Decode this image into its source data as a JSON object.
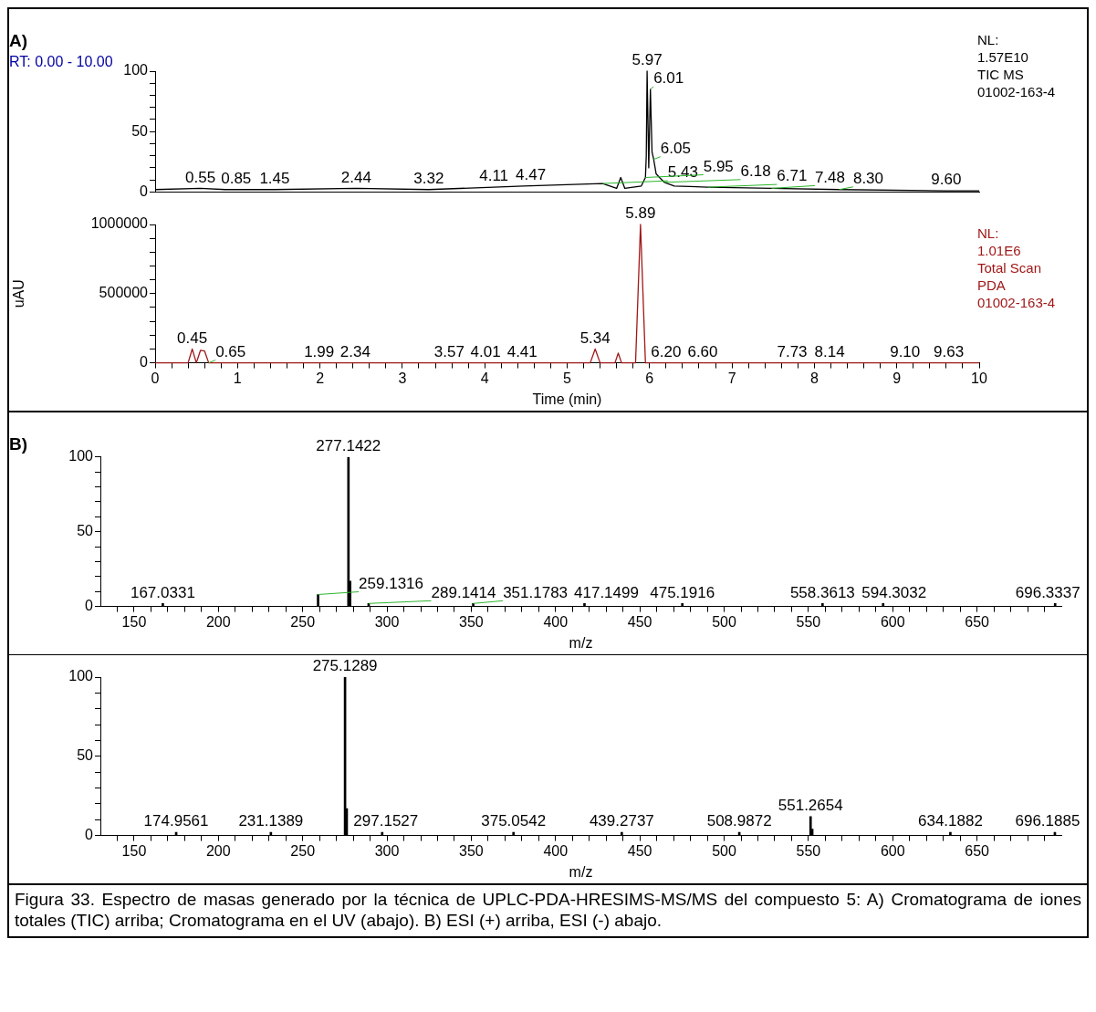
{
  "chart_data": [
    {
      "type": "line",
      "title": "A)",
      "subtitle": "RT: 0.00 - 10.00",
      "xlim": [
        0,
        10
      ],
      "ylim": [
        0,
        100
      ],
      "yticks": [
        0,
        {
          "value": 10,
          "label": null
        },
        {
          "value": 20,
          "label": null
        },
        {
          "value": 30,
          "label": null
        },
        {
          "value": 40,
          "label": null
        },
        50,
        {
          "value": 60,
          "label": null
        },
        {
          "value": 70,
          "label": null
        },
        {
          "value": 80,
          "label": null
        },
        {
          "value": 90,
          "label": null
        },
        100
      ],
      "tick_labels": "y",
      "series": [
        {
          "color": "#000000",
          "x": [
            0,
            0.55,
            0.85,
            1.45,
            2.44,
            3.32,
            4.11,
            4.47,
            5.43,
            5.6,
            5.65,
            5.7,
            5.9,
            5.95,
            5.96,
            5.97,
            5.99,
            6.01,
            6.03,
            6.05,
            6.08,
            6.12,
            6.18,
            6.3,
            6.71,
            7.48,
            8.3,
            9.6,
            10
          ],
          "values": [
            2,
            3,
            2,
            2,
            3,
            2,
            4,
            5,
            7,
            3,
            12,
            3,
            5,
            12,
            30,
            100,
            20,
            85,
            33,
            27,
            15,
            12,
            8,
            5,
            4,
            3,
            2,
            1,
            1
          ]
        }
      ],
      "annotations": [
        "NL:",
        "1.57E10",
        "TIC  MS",
        "01002-163-4",
        {
          "text": "0.55",
          "x": 0.55,
          "y": 3
        },
        {
          "text": "0.85",
          "x": 0.85,
          "y": 2
        },
        {
          "text": "1.45",
          "x": 1.45,
          "y": 2
        },
        {
          "text": "2.44",
          "x": 2.44,
          "y": 3
        },
        {
          "text": "3.32",
          "x": 3.32,
          "y": 2
        },
        {
          "text": "4.11",
          "x": 4.11,
          "y": 4
        },
        {
          "text": "4.47",
          "x": 4.47,
          "y": 5
        },
        {
          "text": "5.43",
          "x": 5.43,
          "y": 7
        },
        {
          "text": "5.97",
          "x": 5.97,
          "y": 100
        },
        {
          "text": "6.01",
          "x": 6.01,
          "y": 85
        },
        {
          "text": "6.05",
          "x": 6.05,
          "y": 27
        },
        {
          "text": "5.95",
          "x": 5.95,
          "y": 12
        },
        {
          "text": "6.18",
          "x": 6.18,
          "y": 8
        },
        {
          "text": "6.71",
          "x": 6.71,
          "y": 4
        },
        {
          "text": "7.48",
          "x": 7.48,
          "y": 3
        },
        {
          "text": "8.30",
          "x": 8.3,
          "y": 2
        },
        {
          "text": "9.60",
          "x": 9.6,
          "y": 1
        }
      ]
    },
    {
      "type": "line",
      "xlabel": "Time (min)",
      "ylabel": "uAU",
      "xlim": [
        0,
        10
      ],
      "ylim": [
        0,
        1000000
      ],
      "xticks": [
        0,
        {
          "value": 0.2,
          "label": null
        },
        {
          "value": 0.4,
          "label": null
        },
        {
          "value": 0.6,
          "label": null
        },
        {
          "value": 0.8,
          "label": null
        },
        1,
        {
          "value": 1.2,
          "label": null
        },
        {
          "value": 1.4,
          "label": null
        },
        {
          "value": 1.6,
          "label": null
        },
        {
          "value": 1.8,
          "label": null
        },
        2,
        {
          "value": 2.2,
          "label": null
        },
        {
          "value": 2.4,
          "label": null
        },
        {
          "value": 2.6,
          "label": null
        },
        {
          "value": 2.8,
          "label": null
        },
        3,
        {
          "value": 3.2,
          "label": null
        },
        {
          "value": 3.4,
          "label": null
        },
        {
          "value": 3.6,
          "label": null
        },
        {
          "value": 3.8,
          "label": null
        },
        4,
        {
          "value": 4.2,
          "label": null
        },
        {
          "value": 4.4,
          "label": null
        },
        {
          "value": 4.6,
          "label": null
        },
        {
          "value": 4.8,
          "label": null
        },
        5,
        {
          "value": 5.2,
          "label": null
        },
        {
          "value": 5.4,
          "label": null
        },
        {
          "value": 5.6,
          "label": null
        },
        {
          "value": 5.8,
          "label": null
        },
        6,
        {
          "value": 6.2,
          "label": null
        },
        {
          "value": 6.4,
          "label": null
        },
        {
          "value": 6.6,
          "label": null
        },
        {
          "value": 6.8,
          "label": null
        },
        7,
        {
          "value": 7.2,
          "label": null
        },
        {
          "value": 7.4,
          "label": null
        },
        {
          "value": 7.6,
          "label": null
        },
        {
          "value": 7.8,
          "label": null
        },
        8,
        {
          "value": 8.2,
          "label": null
        },
        {
          "value": 8.4,
          "label": null
        },
        {
          "value": 8.6,
          "label": null
        },
        {
          "value": 8.8,
          "label": null
        },
        9,
        {
          "value": 9.2,
          "label": null
        },
        {
          "value": 9.4,
          "label": null
        },
        {
          "value": 9.6,
          "label": null
        },
        {
          "value": 9.8,
          "label": null
        },
        10
      ],
      "yticks": [
        0,
        {
          "value": 100000,
          "label": null
        },
        {
          "value": 200000,
          "label": null
        },
        {
          "value": 300000,
          "label": null
        },
        {
          "value": 400000,
          "label": null
        },
        500000,
        {
          "value": 600000,
          "label": null
        },
        {
          "value": 700000,
          "label": null
        },
        {
          "value": 800000,
          "label": null
        },
        {
          "value": 900000,
          "label": null
        },
        1000000
      ],
      "series": [
        {
          "color": "#a01818",
          "x": [
            0,
            0.4,
            0.45,
            0.5,
            0.55,
            0.6,
            0.65,
            5.28,
            5.34,
            5.4,
            5.58,
            5.62,
            5.66,
            5.83,
            5.89,
            5.95,
            6.0,
            10
          ],
          "values": [
            0,
            0,
            100000,
            0,
            90000,
            85000,
            0,
            0,
            100000,
            0,
            0,
            70000,
            0,
            0,
            1000000,
            0,
            0,
            0
          ]
        }
      ],
      "annotations": [
        "NL:",
        "1.01E6",
        "Total Scan",
        "PDA",
        "01002-163-4",
        {
          "text": "0.45",
          "x": 0.45,
          "y": 100000
        },
        {
          "text": "0.65",
          "x": 0.65,
          "y": 0
        },
        {
          "text": "1.99",
          "x": 1.99,
          "y": 0
        },
        {
          "text": "2.34",
          "x": 2.34,
          "y": 0
        },
        {
          "text": "3.57",
          "x": 3.57,
          "y": 0
        },
        {
          "text": "4.01",
          "x": 4.01,
          "y": 0
        },
        {
          "text": "4.41",
          "x": 4.41,
          "y": 0
        },
        {
          "text": "5.34",
          "x": 5.34,
          "y": 100000
        },
        {
          "text": "5.89",
          "x": 5.89,
          "y": 1000000
        },
        {
          "text": "6.20",
          "x": 6.2,
          "y": 0
        },
        {
          "text": "6.60",
          "x": 6.6,
          "y": 0
        },
        {
          "text": "7.73",
          "x": 7.73,
          "y": 0
        },
        {
          "text": "8.14",
          "x": 8.14,
          "y": 0
        },
        {
          "text": "9.10",
          "x": 9.1,
          "y": 0
        },
        {
          "text": "9.63",
          "x": 9.63,
          "y": 0
        }
      ]
    },
    {
      "type": "bar",
      "title": "B)",
      "xlabel": "m/z",
      "xlim": [
        130,
        700
      ],
      "ylim": [
        0,
        100
      ],
      "xticks": [
        {
          "value": 140,
          "label": null
        },
        150,
        {
          "value": 160,
          "label": null
        },
        {
          "value": 170,
          "label": null
        },
        {
          "value": 180,
          "label": null
        },
        {
          "value": 190,
          "label": null
        },
        200,
        {
          "value": 210,
          "label": null
        },
        {
          "value": 220,
          "label": null
        },
        {
          "value": 230,
          "label": null
        },
        {
          "value": 240,
          "label": null
        },
        250,
        {
          "value": 260,
          "label": null
        },
        {
          "value": 270,
          "label": null
        },
        {
          "value": 280,
          "label": null
        },
        {
          "value": 290,
          "label": null
        },
        300,
        {
          "value": 310,
          "label": null
        },
        {
          "value": 320,
          "label": null
        },
        {
          "value": 330,
          "label": null
        },
        {
          "value": 340,
          "label": null
        },
        350,
        {
          "value": 360,
          "label": null
        },
        {
          "value": 370,
          "label": null
        },
        {
          "value": 380,
          "label": null
        },
        {
          "value": 390,
          "label": null
        },
        400,
        {
          "value": 410,
          "label": null
        },
        {
          "value": 420,
          "label": null
        },
        {
          "value": 430,
          "label": null
        },
        {
          "value": 440,
          "label": null
        },
        450,
        {
          "value": 460,
          "label": null
        },
        {
          "value": 470,
          "label": null
        },
        {
          "value": 480,
          "label": null
        },
        {
          "value": 490,
          "label": null
        },
        500,
        {
          "value": 510,
          "label": null
        },
        {
          "value": 520,
          "label": null
        },
        {
          "value": 530,
          "label": null
        },
        {
          "value": 540,
          "label": null
        },
        550,
        {
          "value": 560,
          "label": null
        },
        {
          "value": 570,
          "label": null
        },
        {
          "value": 580,
          "label": null
        },
        {
          "value": 590,
          "label": null
        },
        600,
        {
          "value": 610,
          "label": null
        },
        {
          "value": 620,
          "label": null
        },
        {
          "value": 630,
          "label": null
        },
        {
          "value": 640,
          "label": null
        },
        650,
        {
          "value": 660,
          "label": null
        },
        {
          "value": 670,
          "label": null
        },
        {
          "value": 680,
          "label": null
        },
        {
          "value": 690,
          "label": null
        }
      ],
      "yticks": [
        0,
        {
          "value": 10,
          "label": null
        },
        {
          "value": 20,
          "label": null
        },
        {
          "value": 30,
          "label": null
        },
        {
          "value": 40,
          "label": null
        },
        50,
        {
          "value": 60,
          "label": null
        },
        {
          "value": 70,
          "label": null
        },
        {
          "value": 80,
          "label": null
        },
        {
          "value": 90,
          "label": null
        },
        100
      ],
      "series": [
        {
          "color": "#000000",
          "x": [
            167.0331,
            259.1316,
            277.1422,
            278.14,
            289.1414,
            351.1783,
            417.1499,
            475.1916,
            558.3613,
            594.3032,
            696.3337
          ],
          "values": [
            2,
            8,
            100,
            17,
            2,
            2,
            2,
            2,
            2,
            2,
            2
          ]
        }
      ],
      "annotations": [
        {
          "text": "167.0331",
          "x": 167.0331,
          "y": 2
        },
        {
          "text": "259.1316",
          "x": 259.1316,
          "y": 8
        },
        {
          "text": "277.1422",
          "x": 277.1422,
          "y": 100
        },
        {
          "text": "289.1414",
          "x": 289.1414,
          "y": 2
        },
        {
          "text": "351.1783",
          "x": 351.1783,
          "y": 2
        },
        {
          "text": "417.1499",
          "x": 417.1499,
          "y": 2
        },
        {
          "text": "475.1916",
          "x": 475.1916,
          "y": 2
        },
        {
          "text": "558.3613",
          "x": 558.3613,
          "y": 2
        },
        {
          "text": "594.3032",
          "x": 594.3032,
          "y": 2
        },
        {
          "text": "696.3337",
          "x": 696.3337,
          "y": 2
        }
      ]
    },
    {
      "type": "bar",
      "xlabel": "m/z",
      "xlim": [
        130,
        700
      ],
      "ylim": [
        0,
        100
      ],
      "xticks": [
        {
          "value": 140,
          "label": null
        },
        150,
        {
          "value": 160,
          "label": null
        },
        {
          "value": 170,
          "label": null
        },
        {
          "value": 180,
          "label": null
        },
        {
          "value": 190,
          "label": null
        },
        200,
        {
          "value": 210,
          "label": null
        },
        {
          "value": 220,
          "label": null
        },
        {
          "value": 230,
          "label": null
        },
        {
          "value": 240,
          "label": null
        },
        250,
        {
          "value": 260,
          "label": null
        },
        {
          "value": 270,
          "label": null
        },
        {
          "value": 280,
          "label": null
        },
        {
          "value": 290,
          "label": null
        },
        300,
        {
          "value": 310,
          "label": null
        },
        {
          "value": 320,
          "label": null
        },
        {
          "value": 330,
          "label": null
        },
        {
          "value": 340,
          "label": null
        },
        350,
        {
          "value": 360,
          "label": null
        },
        {
          "value": 370,
          "label": null
        },
        {
          "value": 380,
          "label": null
        },
        {
          "value": 390,
          "label": null
        },
        400,
        {
          "value": 410,
          "label": null
        },
        {
          "value": 420,
          "label": null
        },
        {
          "value": 430,
          "label": null
        },
        {
          "value": 440,
          "label": null
        },
        450,
        {
          "value": 460,
          "label": null
        },
        {
          "value": 470,
          "label": null
        },
        {
          "value": 480,
          "label": null
        },
        {
          "value": 490,
          "label": null
        },
        500,
        {
          "value": 510,
          "label": null
        },
        {
          "value": 520,
          "label": null
        },
        {
          "value": 530,
          "label": null
        },
        {
          "value": 540,
          "label": null
        },
        550,
        {
          "value": 560,
          "label": null
        },
        {
          "value": 570,
          "label": null
        },
        {
          "value": 580,
          "label": null
        },
        {
          "value": 590,
          "label": null
        },
        600,
        {
          "value": 610,
          "label": null
        },
        {
          "value": 620,
          "label": null
        },
        {
          "value": 630,
          "label": null
        },
        {
          "value": 640,
          "label": null
        },
        650,
        {
          "value": 660,
          "label": null
        },
        {
          "value": 670,
          "label": null
        },
        {
          "value": 680,
          "label": null
        },
        {
          "value": 690,
          "label": null
        }
      ],
      "yticks": [
        0,
        {
          "value": 10,
          "label": null
        },
        {
          "value": 20,
          "label": null
        },
        {
          "value": 30,
          "label": null
        },
        {
          "value": 40,
          "label": null
        },
        50,
        {
          "value": 60,
          "label": null
        },
        {
          "value": 70,
          "label": null
        },
        {
          "value": 80,
          "label": null
        },
        {
          "value": 90,
          "label": null
        },
        100
      ],
      "series": [
        {
          "color": "#000000",
          "x": [
            174.9561,
            231.1389,
            275.1289,
            276.13,
            297.1527,
            375.0542,
            439.2737,
            508.9872,
            551.2654,
            552.26,
            634.1882,
            696.1885
          ],
          "values": [
            2,
            2,
            100,
            17,
            2,
            2,
            2,
            2,
            12,
            4,
            2,
            2
          ]
        }
      ],
      "annotations": [
        {
          "text": "174.9561",
          "x": 174.9561,
          "y": 2
        },
        {
          "text": "231.1389",
          "x": 231.1389,
          "y": 2
        },
        {
          "text": "275.1289",
          "x": 275.1289,
          "y": 100
        },
        {
          "text": "297.1527",
          "x": 297.1527,
          "y": 2
        },
        {
          "text": "375.0542",
          "x": 375.0542,
          "y": 2
        },
        {
          "text": "439.2737",
          "x": 439.2737,
          "y": 2
        },
        {
          "text": "508.9872",
          "x": 508.9872,
          "y": 2
        },
        {
          "text": "551.2654",
          "x": 551.2654,
          "y": 12
        },
        {
          "text": "634.1882",
          "x": 634.1882,
          "y": 2
        },
        {
          "text": "696.1885",
          "x": 696.1885,
          "y": 2
        },
        "Figura 33. Espectro de masas generado por la técnica de UPLC-PDA-HRESIMS-MS/MS del compuesto 5: A) Cromatograma de iones totales (TIC) arriba; Cromatograma en el UV (abajo). B) ESI (+) arriba, ESI (-) abajo."
      ]
    }
  ]
}
